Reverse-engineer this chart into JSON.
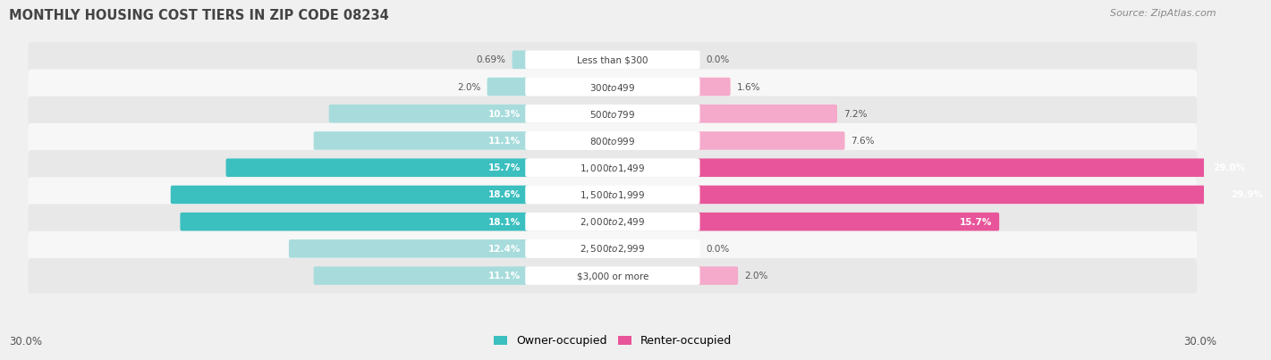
{
  "title": "Monthly Housing Cost Tiers in Zip Code 08234",
  "title_display": "MONTHLY HOUSING COST TIERS IN ZIP CODE 08234",
  "source": "Source: ZipAtlas.com",
  "categories": [
    "Less than $300",
    "$300 to $499",
    "$500 to $799",
    "$800 to $999",
    "$1,000 to $1,499",
    "$1,500 to $1,999",
    "$2,000 to $2,499",
    "$2,500 to $2,999",
    "$3,000 or more"
  ],
  "owner_values": [
    0.69,
    2.0,
    10.3,
    11.1,
    15.7,
    18.6,
    18.1,
    12.4,
    11.1
  ],
  "renter_values": [
    0.0,
    1.6,
    7.2,
    7.6,
    29.0,
    29.9,
    15.7,
    0.0,
    2.0
  ],
  "owner_color_strong": "#3BBFBF",
  "owner_color_light": "#A8DCDC",
  "renter_color_strong": "#E8559A",
  "renter_color_light": "#F5AACB",
  "owner_label": "Owner-occupied",
  "renter_label": "Renter-occupied",
  "max_value": 30.0,
  "bg_color": "#f0f0f0",
  "row_bg_light": "#f7f7f7",
  "row_bg_dark": "#e8e8e8",
  "title_color": "#444444",
  "label_color": "#555555",
  "bar_height": 0.52,
  "strong_threshold": 15.0,
  "inside_label_threshold": 8.0,
  "axis_label": "30.0%"
}
